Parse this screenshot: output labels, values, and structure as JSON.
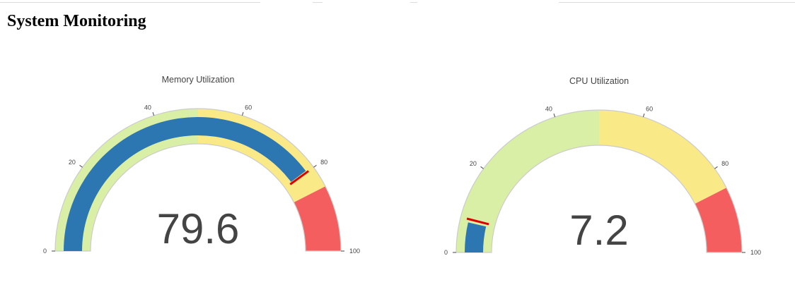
{
  "page": {
    "title": "System Monitoring"
  },
  "chart_data": [
    {
      "type": "gauge",
      "title": "Memory Utilization",
      "value": 79.6,
      "value_label": "79.6",
      "range": [
        0,
        100
      ],
      "ticks": [
        0,
        20,
        40,
        60,
        80,
        100
      ],
      "tick_labels": [
        "0",
        "20",
        "40",
        "60",
        "80",
        "100"
      ],
      "steps": [
        {
          "range": [
            0,
            50
          ],
          "color": "#d9efa6"
        },
        {
          "range": [
            50,
            85
          ],
          "color": "#f9e987"
        },
        {
          "range": [
            85,
            100
          ],
          "color": "#f55e5e"
        }
      ],
      "threshold": 80,
      "threshold_color": "#dd0000",
      "bar_color": "#2c76b2"
    },
    {
      "type": "gauge",
      "title": "CPU Utilization",
      "value": 7.2,
      "value_label": "7.2",
      "range": [
        0,
        100
      ],
      "ticks": [
        0,
        20,
        40,
        60,
        80,
        100
      ],
      "tick_labels": [
        "0",
        "20",
        "40",
        "60",
        "80",
        "100"
      ],
      "steps": [
        {
          "range": [
            0,
            50
          ],
          "color": "#d9efa6"
        },
        {
          "range": [
            50,
            85
          ],
          "color": "#f9e987"
        },
        {
          "range": [
            85,
            100
          ],
          "color": "#f55e5e"
        }
      ],
      "threshold": 8,
      "threshold_color": "#dd0000",
      "bar_color": "#2c76b2"
    }
  ]
}
